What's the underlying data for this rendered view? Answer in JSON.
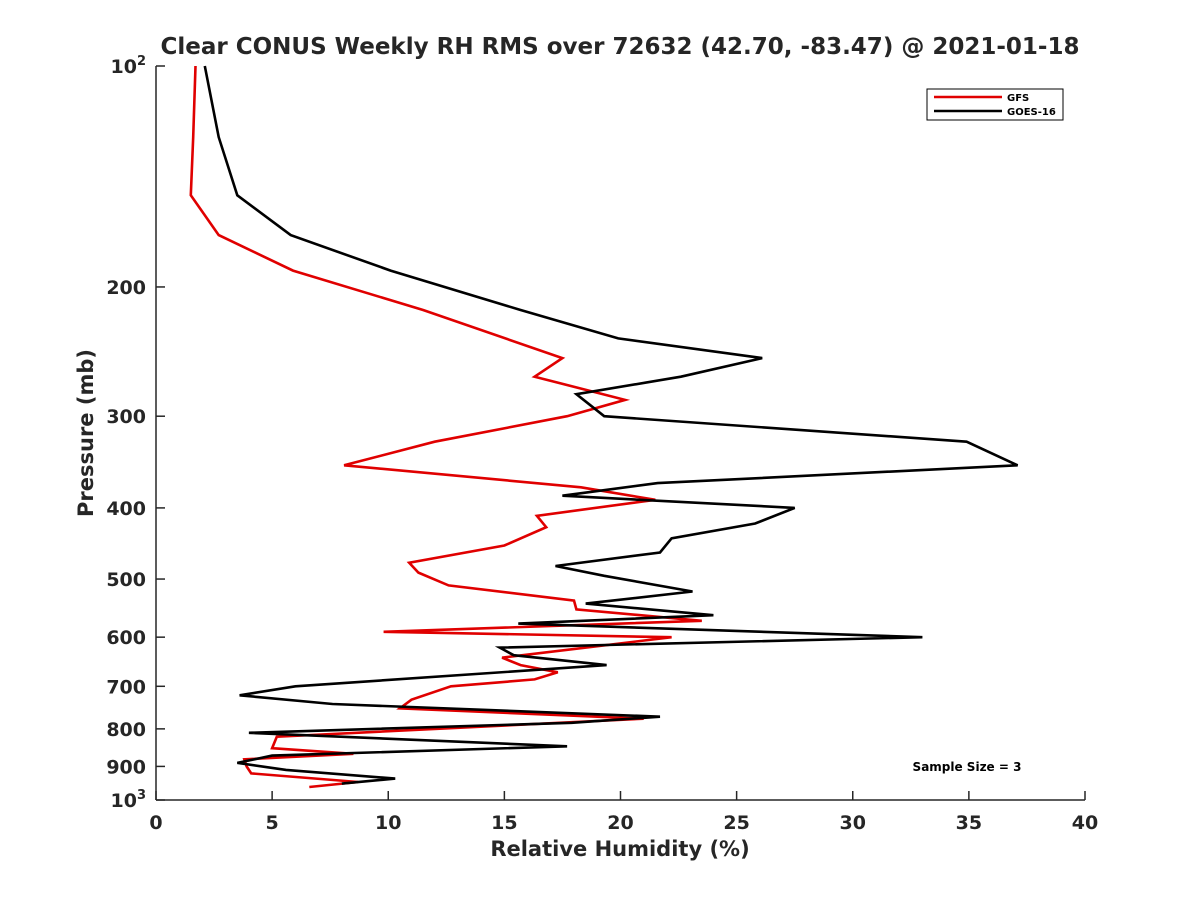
{
  "chart_data": {
    "type": "line",
    "title": "Clear CONUS Weekly RH RMS over 72632 (42.70, -83.47) @ 2021-01-18",
    "xlabel": "Relative Humidity (%)",
    "ylabel": "Pressure (mb)",
    "xlim": [
      0,
      40
    ],
    "ylim": [
      100,
      1000
    ],
    "y_scale": "log",
    "y_reversed": true,
    "grid": false,
    "legend_position": "top-right",
    "x_ticks": [
      0,
      5,
      10,
      15,
      20,
      25,
      30,
      35,
      40
    ],
    "y_ticks": [
      {
        "value": 100,
        "label": "10",
        "sup": "2"
      },
      {
        "value": 200,
        "label": "200",
        "sup": ""
      },
      {
        "value": 300,
        "label": "300",
        "sup": ""
      },
      {
        "value": 400,
        "label": "400",
        "sup": ""
      },
      {
        "value": 500,
        "label": "500",
        "sup": ""
      },
      {
        "value": 600,
        "label": "600",
        "sup": ""
      },
      {
        "value": 700,
        "label": "700",
        "sup": ""
      },
      {
        "value": 800,
        "label": "800",
        "sup": ""
      },
      {
        "value": 900,
        "label": "900",
        "sup": ""
      },
      {
        "value": 1000,
        "label": "10",
        "sup": "3"
      }
    ],
    "series": [
      {
        "name": "GFS",
        "color": "#e00000",
        "points": [
          [
            1.7,
            100
          ],
          [
            1.6,
            125
          ],
          [
            1.5,
            150
          ],
          [
            2.7,
            170
          ],
          [
            5.9,
            190
          ],
          [
            11.5,
            215
          ],
          [
            17.5,
            250
          ],
          [
            16.3,
            265
          ],
          [
            20.2,
            285
          ],
          [
            17.7,
            300
          ],
          [
            12,
            325
          ],
          [
            8.1,
            350
          ],
          [
            18.3,
            375
          ],
          [
            21.5,
            390
          ],
          [
            16.4,
            410
          ],
          [
            16.8,
            425
          ],
          [
            15.0,
            450
          ],
          [
            10.9,
            475
          ],
          [
            11.3,
            490
          ],
          [
            12.6,
            510
          ],
          [
            18.0,
            535
          ],
          [
            18.1,
            550
          ],
          [
            23.5,
            570
          ],
          [
            9.8,
            590
          ],
          [
            22.2,
            600
          ],
          [
            14.9,
            640
          ],
          [
            15.7,
            655
          ],
          [
            17.3,
            670
          ],
          [
            16.3,
            685
          ],
          [
            12.7,
            700
          ],
          [
            11.0,
            730
          ],
          [
            10.5,
            750
          ],
          [
            21.0,
            775
          ],
          [
            5.2,
            820
          ],
          [
            5.0,
            850
          ],
          [
            8.5,
            865
          ],
          [
            3.8,
            880
          ],
          [
            3.9,
            900
          ],
          [
            4.1,
            920
          ],
          [
            8.7,
            945
          ],
          [
            6.6,
            960
          ]
        ]
      },
      {
        "name": "GOES-16",
        "color": "#000000",
        "points": [
          [
            2.1,
            100
          ],
          [
            2.7,
            125
          ],
          [
            3.5,
            150
          ],
          [
            5.8,
            170
          ],
          [
            10.1,
            190
          ],
          [
            15.7,
            215
          ],
          [
            19.9,
            235
          ],
          [
            26.1,
            250
          ],
          [
            22.6,
            265
          ],
          [
            18.1,
            280
          ],
          [
            19.3,
            300
          ],
          [
            34.9,
            325
          ],
          [
            37.1,
            350
          ],
          [
            21.6,
            370
          ],
          [
            17.5,
            385
          ],
          [
            27.5,
            400
          ],
          [
            25.8,
            420
          ],
          [
            22.2,
            440
          ],
          [
            21.7,
            460
          ],
          [
            17.2,
            480
          ],
          [
            19.3,
            495
          ],
          [
            23.1,
            520
          ],
          [
            18.5,
            540
          ],
          [
            24.0,
            560
          ],
          [
            15.6,
            575
          ],
          [
            33.0,
            600
          ],
          [
            14.8,
            620
          ],
          [
            15.4,
            635
          ],
          [
            19.4,
            655
          ],
          [
            6.0,
            700
          ],
          [
            3.6,
            720
          ],
          [
            7.6,
            740
          ],
          [
            21.7,
            770
          ],
          [
            17.9,
            785
          ],
          [
            4.0,
            810
          ],
          [
            17.7,
            845
          ],
          [
            5.0,
            870
          ],
          [
            3.5,
            890
          ],
          [
            5.6,
            910
          ],
          [
            10.3,
            935
          ],
          [
            8.0,
            950
          ]
        ]
      }
    ],
    "legend": [
      {
        "label": "GFS",
        "color": "#e00000"
      },
      {
        "label": "GOES-16",
        "color": "#000000"
      }
    ],
    "annotation": "Sample Size = 3"
  }
}
